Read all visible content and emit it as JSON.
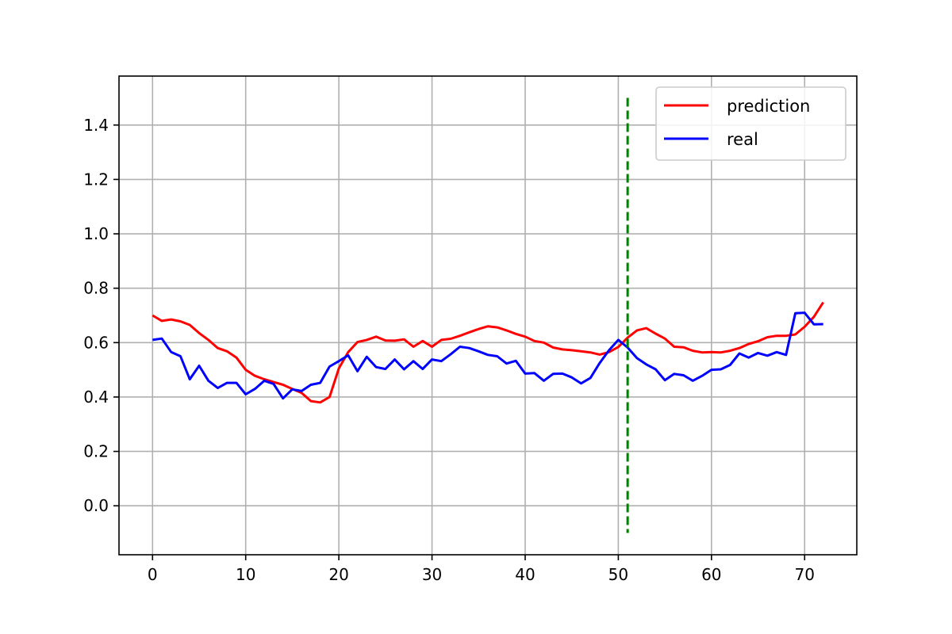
{
  "chart_data": {
    "type": "line",
    "title": "",
    "xlabel": "",
    "ylabel": "",
    "xlim": [
      -3.6,
      75.6
    ],
    "ylim": [
      -0.18,
      1.58
    ],
    "xticks": [
      0,
      10,
      20,
      30,
      40,
      50,
      60,
      70
    ],
    "yticks": [
      0.0,
      0.2,
      0.4,
      0.6,
      0.8,
      1.0,
      1.2,
      1.4
    ],
    "grid": true,
    "legend_position": "top-right",
    "series": [
      {
        "name": "prediction",
        "color": "#ff0000",
        "x": [
          0,
          1,
          2,
          3,
          4,
          5,
          6,
          7,
          8,
          9,
          10,
          11,
          12,
          13,
          14,
          15,
          16,
          17,
          18,
          19,
          20,
          21,
          22,
          23,
          24,
          25,
          26,
          27,
          28,
          29,
          30,
          31,
          32,
          33,
          34,
          35,
          36,
          37,
          38,
          39,
          40,
          41,
          42,
          43,
          44,
          45,
          46,
          47,
          48,
          49,
          50,
          51,
          52,
          53,
          54,
          55,
          56,
          57,
          58,
          59,
          60,
          61,
          62,
          63,
          64,
          65,
          66,
          67,
          68,
          69,
          70,
          71,
          72
        ],
        "values": [
          0.7,
          0.68,
          0.685,
          0.678,
          0.665,
          0.635,
          0.61,
          0.58,
          0.568,
          0.545,
          0.5,
          0.478,
          0.465,
          0.455,
          0.445,
          0.43,
          0.415,
          0.385,
          0.38,
          0.4,
          0.505,
          0.565,
          0.602,
          0.61,
          0.622,
          0.608,
          0.607,
          0.612,
          0.585,
          0.606,
          0.585,
          0.61,
          0.614,
          0.625,
          0.638,
          0.65,
          0.66,
          0.656,
          0.645,
          0.632,
          0.622,
          0.606,
          0.6,
          0.582,
          0.575,
          0.572,
          0.568,
          0.564,
          0.556,
          0.565,
          0.584,
          0.618,
          0.645,
          0.653,
          0.633,
          0.615,
          0.585,
          0.583,
          0.57,
          0.564,
          0.565,
          0.564,
          0.57,
          0.58,
          0.595,
          0.605,
          0.62,
          0.625,
          0.625,
          0.63,
          0.658,
          0.695,
          0.748
        ]
      },
      {
        "name": "real",
        "color": "#0000ff",
        "x": [
          0,
          1,
          2,
          3,
          4,
          5,
          6,
          7,
          8,
          9,
          10,
          11,
          12,
          13,
          14,
          15,
          16,
          17,
          18,
          19,
          20,
          21,
          22,
          23,
          24,
          25,
          26,
          27,
          28,
          29,
          30,
          31,
          32,
          33,
          34,
          35,
          36,
          37,
          38,
          39,
          40,
          41,
          42,
          43,
          44,
          45,
          46,
          47,
          48,
          49,
          50,
          51,
          52,
          53,
          54,
          55,
          56,
          57,
          58,
          59,
          60,
          61,
          62,
          63,
          64,
          65,
          66,
          67,
          68,
          69,
          70,
          71,
          72
        ],
        "values": [
          0.61,
          0.615,
          0.565,
          0.55,
          0.465,
          0.515,
          0.46,
          0.433,
          0.452,
          0.452,
          0.41,
          0.43,
          0.46,
          0.448,
          0.395,
          0.428,
          0.422,
          0.445,
          0.452,
          0.512,
          0.532,
          0.553,
          0.495,
          0.548,
          0.51,
          0.503,
          0.538,
          0.502,
          0.532,
          0.503,
          0.538,
          0.532,
          0.557,
          0.585,
          0.58,
          0.568,
          0.555,
          0.55,
          0.523,
          0.533,
          0.486,
          0.488,
          0.46,
          0.485,
          0.486,
          0.472,
          0.45,
          0.47,
          0.525,
          0.572,
          0.61,
          0.582,
          0.543,
          0.52,
          0.502,
          0.462,
          0.485,
          0.48,
          0.46,
          0.478,
          0.5,
          0.502,
          0.518,
          0.56,
          0.545,
          0.562,
          0.552,
          0.565,
          0.555,
          0.708,
          0.71,
          0.667,
          0.668
        ]
      }
    ],
    "vertical_line": {
      "x": 51,
      "y_range": [
        -0.1,
        1.5
      ],
      "color": "#008000",
      "style": "dashed"
    }
  }
}
